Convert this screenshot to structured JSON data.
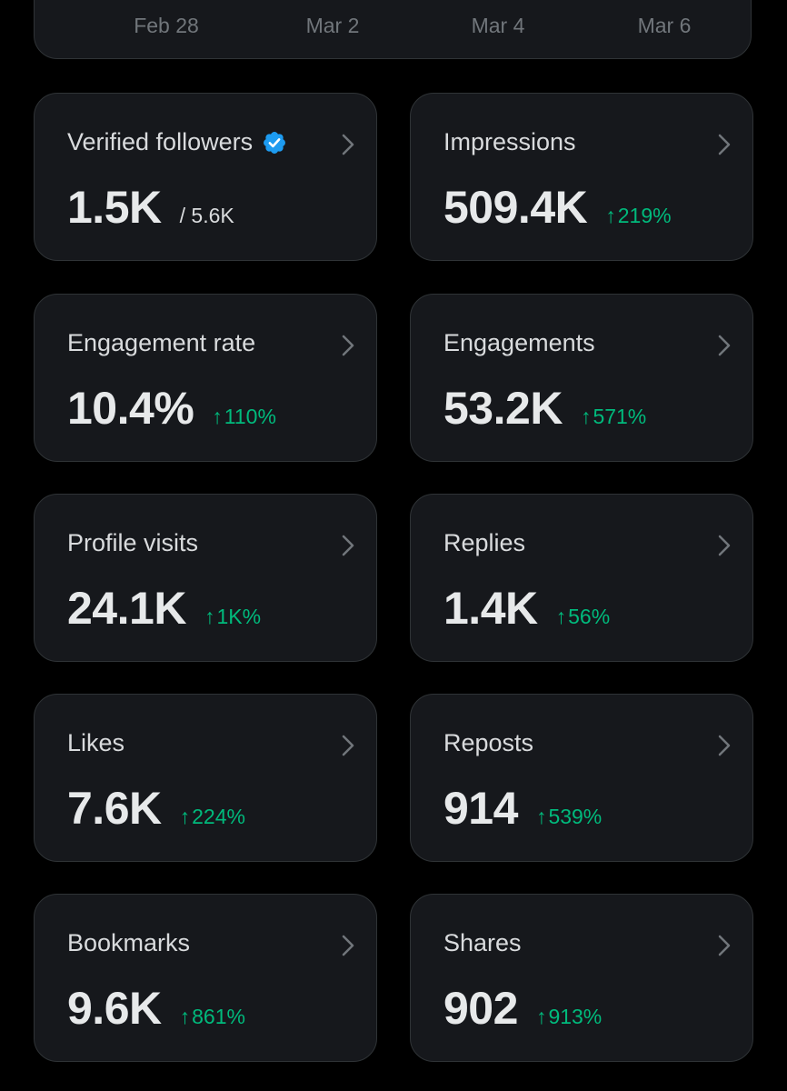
{
  "colors": {
    "background": "#000000",
    "card": "#16181c",
    "border": "#2f3336",
    "positive": "#00ba7c",
    "verified": "#1d9bf0"
  },
  "chart": {
    "x_ticks": [
      "Feb 28",
      "Mar 2",
      "Mar 4",
      "Mar 6"
    ]
  },
  "metrics": [
    {
      "label": "Verified followers",
      "value": "1.5K",
      "sub": "/ 5.6K",
      "icon": "verified-badge-icon"
    },
    {
      "label": "Impressions",
      "value": "509.4K",
      "arrow": "↑",
      "change": "219%"
    },
    {
      "label": "Engagement rate",
      "value": "10.4%",
      "arrow": "↑",
      "change": "110%"
    },
    {
      "label": "Engagements",
      "value": "53.2K",
      "arrow": "↑",
      "change": "571%"
    },
    {
      "label": "Profile visits",
      "value": "24.1K",
      "arrow": "↑",
      "change": "1K%"
    },
    {
      "label": "Replies",
      "value": "1.4K",
      "arrow": "↑",
      "change": "56%"
    },
    {
      "label": "Likes",
      "value": "7.6K",
      "arrow": "↑",
      "change": "224%"
    },
    {
      "label": "Reposts",
      "value": "914",
      "arrow": "↑",
      "change": "539%"
    },
    {
      "label": "Bookmarks",
      "value": "9.6K",
      "arrow": "↑",
      "change": "861%"
    },
    {
      "label": "Shares",
      "value": "902",
      "arrow": "↑",
      "change": "913%"
    }
  ]
}
